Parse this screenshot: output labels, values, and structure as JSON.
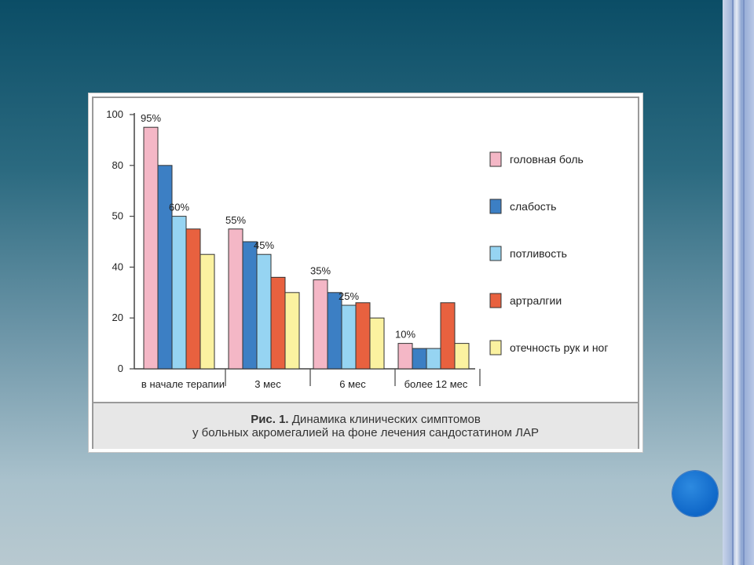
{
  "chart_data": {
    "type": "bar",
    "yticks": [
      "0",
      "20",
      "40",
      "50",
      "80",
      "100"
    ],
    "ylim": [
      0,
      100
    ],
    "categories": [
      "в начале терапии",
      "3 мес",
      "6 мес",
      "более 12 мес"
    ],
    "series": [
      {
        "name": "головная боль",
        "color": "#f4b7c6",
        "values": [
          95,
          55,
          35,
          10
        ]
      },
      {
        "name": "слабость",
        "color": "#3c7fc4",
        "values": [
          80,
          50,
          30,
          8
        ]
      },
      {
        "name": "потливость",
        "color": "#96d4f2",
        "values": [
          60,
          45,
          25,
          8
        ]
      },
      {
        "name": "артралгии",
        "color": "#e8613f",
        "values": [
          55,
          36,
          26,
          26
        ]
      },
      {
        "name": "отечность рук и ног",
        "color": "#fbf2a0",
        "values": [
          45,
          30,
          20,
          10
        ]
      }
    ],
    "data_labels": [
      "95%",
      "60%",
      "55%",
      "45%",
      "35%",
      "25%",
      "10%"
    ],
    "grid": false,
    "legend": "right"
  },
  "caption": {
    "line1_bold": "Рис. 1.",
    "line1_rest": " Динамика клинических симптомов",
    "line2": "у больных акромегалией на фоне лечения сандостатином ЛАР"
  },
  "colors": {
    "background_top": "#0b4d66",
    "background_bottom": "#b8c9d0",
    "nav_circle": "#0f67c8"
  }
}
